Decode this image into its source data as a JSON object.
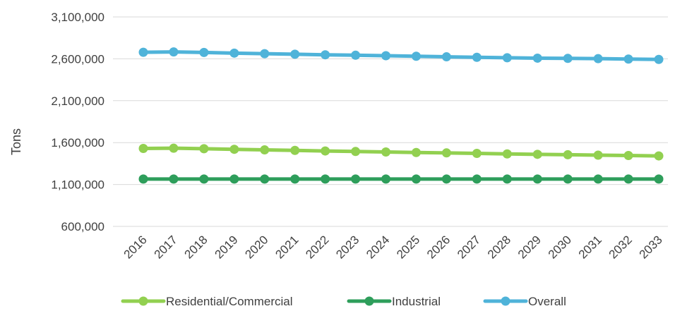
{
  "chart_data": {
    "type": "line",
    "title": "",
    "xlabel": "",
    "ylabel": "Tons",
    "ylim": [
      600000,
      3100000
    ],
    "yticks": [
      600000,
      1100000,
      1600000,
      2100000,
      2600000,
      3100000
    ],
    "ytick_labels": [
      "600,000",
      "1,100,000",
      "1,600,000",
      "2,100,000",
      "2,600,000",
      "3,100,000"
    ],
    "grid": true,
    "legend_position": "bottom",
    "categories": [
      "2016",
      "2017",
      "2018",
      "2019",
      "2020",
      "2021",
      "2022",
      "2023",
      "2024",
      "2025",
      "2026",
      "2027",
      "2028",
      "2029",
      "2030",
      "2031",
      "2032",
      "2033"
    ],
    "series": [
      {
        "name": "Residential/Commercial",
        "color": "#92d050",
        "values": [
          1530000,
          1533000,
          1527000,
          1520000,
          1513000,
          1507000,
          1500000,
          1494000,
          1488000,
          1482000,
          1477000,
          1471000,
          1465000,
          1460000,
          1455000,
          1450000,
          1446000,
          1441000
        ]
      },
      {
        "name": "Industrial",
        "color": "#2e9e5b",
        "values": [
          1165000,
          1165000,
          1165000,
          1165000,
          1165000,
          1165000,
          1165000,
          1165000,
          1165000,
          1165000,
          1165000,
          1165000,
          1165000,
          1165000,
          1165000,
          1165000,
          1165000,
          1165000
        ]
      },
      {
        "name": "Overall",
        "color": "#4fb3d9",
        "values": [
          2678000,
          2682000,
          2676000,
          2668000,
          2661000,
          2655000,
          2648000,
          2643000,
          2637000,
          2631000,
          2624000,
          2618000,
          2613000,
          2608000,
          2605000,
          2602000,
          2597000,
          2593000
        ]
      }
    ]
  },
  "colors": {
    "gridline": "#d9d9d9",
    "text": "#404040"
  }
}
